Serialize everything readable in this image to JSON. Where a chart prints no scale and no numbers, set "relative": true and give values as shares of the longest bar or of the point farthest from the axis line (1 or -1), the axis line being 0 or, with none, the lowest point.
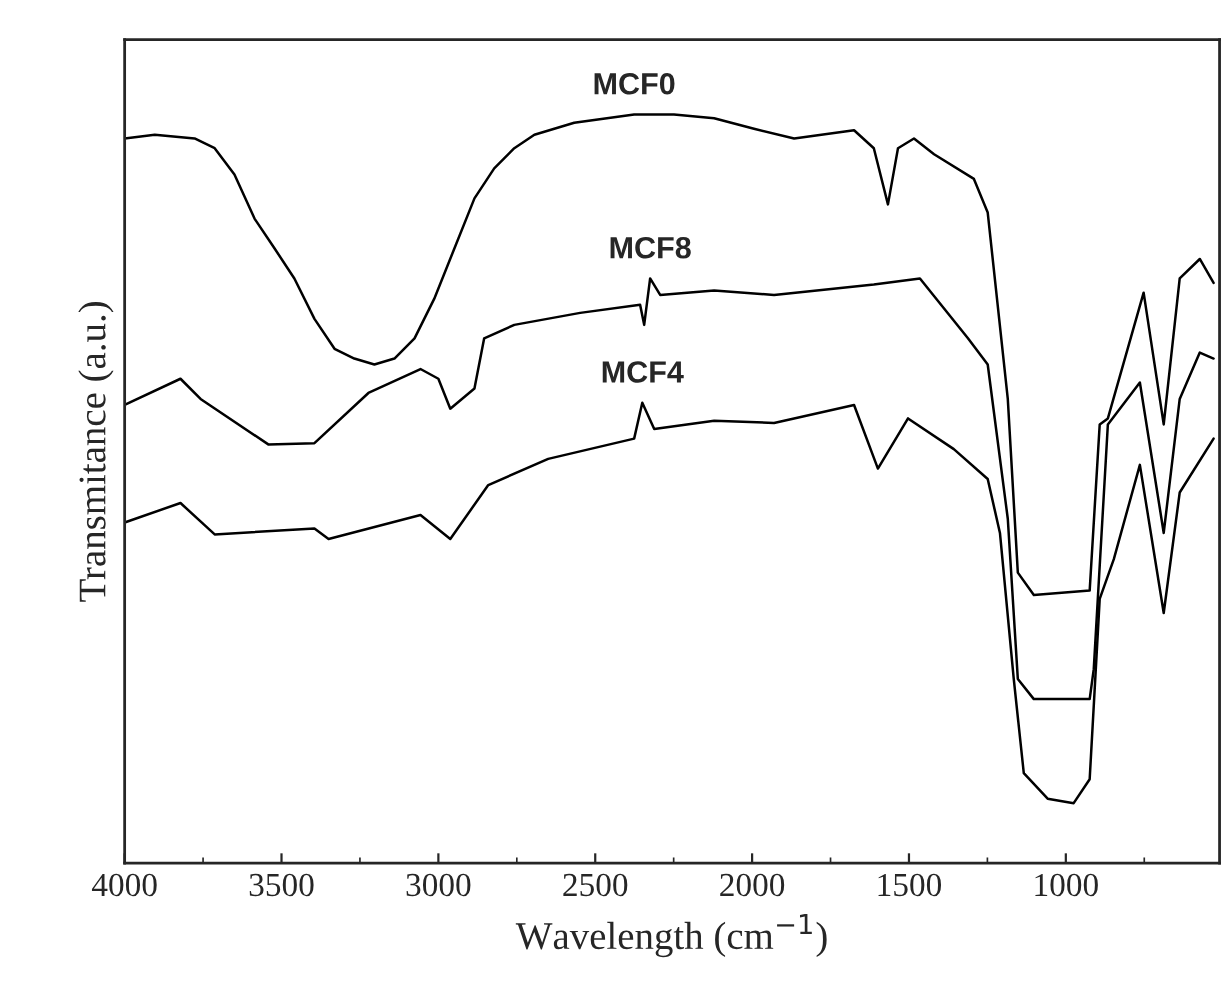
{
  "chart_data": {
    "type": "line",
    "xlabel": "Wavelength (cm$^{−1}$)",
    "ylabel": "Transmitance (a.u.)",
    "relative": true,
    "tick_labels": "x",
    "xlim": [
      4000,
      510
    ],
    "xticks": [
      4000,
      3500,
      3000,
      2500,
      2000,
      1500,
      1000
    ],
    "grid": false,
    "legend": false,
    "marker": "none",
    "line_style": "solid",
    "series": [
      {
        "name": "MCF0",
        "color": "#000000",
        "x": [
          4000,
          3904,
          3777,
          3713,
          3650,
          3586,
          3522,
          3459,
          3395,
          3331,
          3268,
          3204,
          3140,
          3076,
          3013,
          2949,
          2885,
          2822,
          2758,
          2694,
          2567,
          2376,
          2249,
          2121,
          1994,
          1866,
          1675,
          1612,
          1567,
          1535,
          1484,
          1420,
          1293,
          1249,
          1185,
          1153,
          1102,
          924,
          892,
          866,
          752,
          688,
          637,
          573,
          529
        ],
        "values": [
          0.968,
          0.973,
          0.968,
          0.955,
          0.92,
          0.861,
          0.821,
          0.781,
          0.727,
          0.687,
          0.674,
          0.666,
          0.674,
          0.701,
          0.754,
          0.821,
          0.888,
          0.928,
          0.955,
          0.973,
          0.989,
          1.0,
          1.0,
          0.995,
          0.981,
          0.968,
          0.979,
          0.955,
          0.88,
          0.955,
          0.968,
          0.947,
          0.914,
          0.869,
          0.62,
          0.388,
          0.358,
          0.364,
          0.586,
          0.594,
          0.762,
          0.586,
          0.781,
          0.807,
          0.775
        ]
      },
      {
        "name": "MCF8",
        "color": "#000000",
        "x": [
          4000,
          3822,
          3758,
          3541,
          3395,
          3223,
          3057,
          3000,
          2962,
          2885,
          2854,
          2758,
          2548,
          2357,
          2344,
          2325,
          2293,
          2121,
          1930,
          1612,
          1465,
          1312,
          1249,
          1185,
          1153,
          1102,
          924,
          911,
          866,
          764,
          688,
          637,
          573,
          529
        ],
        "values": [
          0.612,
          0.647,
          0.62,
          0.559,
          0.561,
          0.628,
          0.66,
          0.647,
          0.607,
          0.634,
          0.701,
          0.719,
          0.735,
          0.746,
          0.719,
          0.781,
          0.759,
          0.765,
          0.759,
          0.773,
          0.781,
          0.701,
          0.666,
          0.46,
          0.246,
          0.219,
          0.219,
          0.259,
          0.586,
          0.642,
          0.441,
          0.62,
          0.682,
          0.674
        ]
      },
      {
        "name": "MCF4",
        "color": "#000000",
        "x": [
          4000,
          3822,
          3713,
          3395,
          3350,
          3057,
          2962,
          2841,
          2650,
          2376,
          2350,
          2312,
          2121,
          1930,
          1675,
          1599,
          1503,
          1357,
          1249,
          1210,
          1166,
          1134,
          1058,
          975,
          924,
          892,
          847,
          764,
          688,
          637,
          529
        ],
        "values": [
          0.455,
          0.481,
          0.439,
          0.447,
          0.433,
          0.465,
          0.433,
          0.505,
          0.54,
          0.567,
          0.615,
          0.58,
          0.591,
          0.588,
          0.612,
          0.527,
          0.594,
          0.553,
          0.513,
          0.441,
          0.246,
          0.12,
          0.086,
          0.08,
          0.112,
          0.353,
          0.406,
          0.532,
          0.334,
          0.495,
          0.567
        ]
      }
    ]
  }
}
